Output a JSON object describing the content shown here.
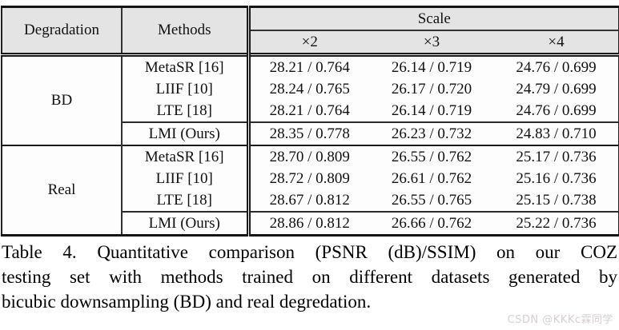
{
  "table": {
    "header": {
      "col1": "Degradation",
      "col2": "Methods",
      "scale": "Scale",
      "scales": [
        "×2",
        "×3",
        "×4"
      ]
    },
    "sections": [
      {
        "label": "BD",
        "rows": [
          {
            "method": "MetaSR [16]",
            "values": [
              "28.21 / 0.764",
              "26.14 / 0.719",
              "24.76 / 0.699"
            ]
          },
          {
            "method": "LIIF [10]",
            "values": [
              "28.24 / 0.765",
              "26.17 / 0.720",
              "24.79 / 0.699"
            ]
          },
          {
            "method": "LTE [18]",
            "values": [
              "28.21 / 0.764",
              "26.14 / 0.719",
              "24.76 / 0.699"
            ]
          },
          {
            "method": "LMI (Ours)",
            "values": [
              "28.35 / 0.778",
              "26.23 / 0.732",
              "24.83 / 0.710"
            ]
          }
        ]
      },
      {
        "label": "Real",
        "rows": [
          {
            "method": "MetaSR [16]",
            "values": [
              "28.70 / 0.809",
              "26.55 / 0.762",
              "25.17 / 0.736"
            ]
          },
          {
            "method": "LIIF [10]",
            "values": [
              "28.72 / 0.809",
              "26.61 / 0.762",
              "25.16 / 0.736"
            ]
          },
          {
            "method": "LTE [18]",
            "values": [
              "28.67 / 0.812",
              "26.55 / 0.765",
              "25.15 / 0.738"
            ]
          },
          {
            "method": "LMI (Ours)",
            "values": [
              "28.86 / 0.812",
              "26.66 / 0.762",
              "25.22 / 0.736"
            ]
          }
        ]
      }
    ]
  },
  "caption": {
    "lines": [
      "Table 4. Quantitative comparison (PSNR (dB)/SSIM) on our COZ",
      "testing set with methods trained on different datasets generated by",
      "bicubic downsampling (BD) and real degredation."
    ]
  },
  "watermark": "CSDN @KKKc霖同学",
  "colors": {
    "header_bg": "#e4e4e4",
    "rule": "#1a1a1a",
    "watermark": "#d8cfcf"
  }
}
